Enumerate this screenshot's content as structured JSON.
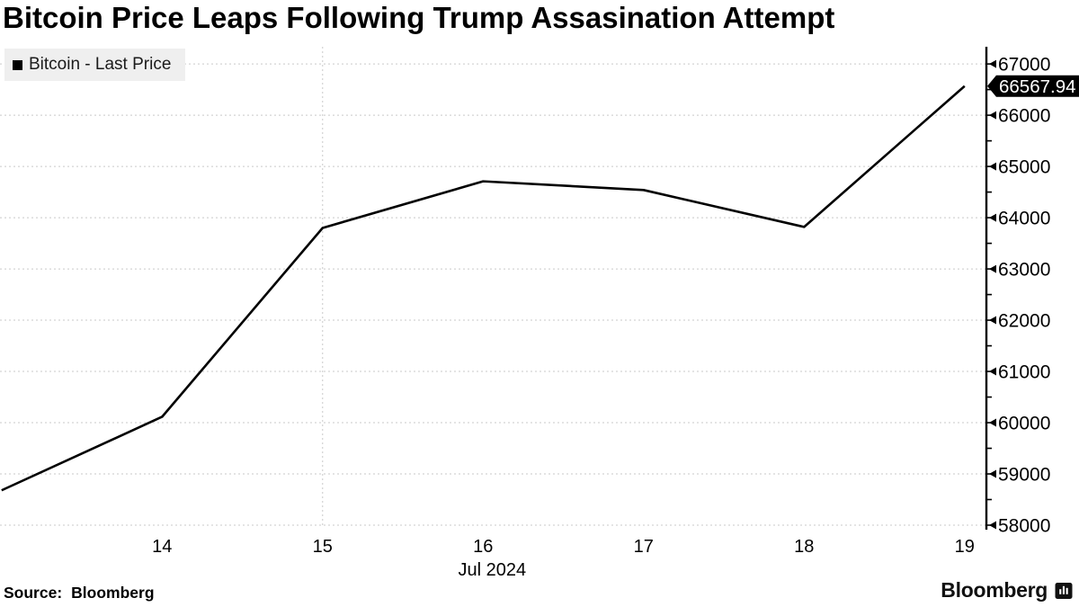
{
  "title": "Bitcoin Price Leaps Following Trump Assasination Attempt",
  "legend": {
    "swatch_color": "#000000",
    "label": "Bitcoin - Last Price"
  },
  "last_price_badge": {
    "value": "66567.94",
    "bg_color": "#000000",
    "text_color": "#ffffff"
  },
  "source": {
    "prefix": "Source:",
    "name": "Bloomberg"
  },
  "brand": {
    "logo_text": "Bloomberg",
    "icon": "bar-chart-bubble-icon"
  },
  "chart_data": {
    "type": "line",
    "title": "Bitcoin Price Leaps Following Trump Assasination Attempt",
    "xlabel": "Jul 2024",
    "ylabel": "",
    "legend_position": "top-left",
    "grid": true,
    "series": [
      {
        "name": "Bitcoin - Last Price",
        "color": "#000000",
        "points": [
          {
            "day": 13.0,
            "price": 58680
          },
          {
            "day": 14.0,
            "price": 60115
          },
          {
            "day": 15.0,
            "price": 63800
          },
          {
            "day": 16.0,
            "price": 64710
          },
          {
            "day": 17.0,
            "price": 64540
          },
          {
            "day": 18.0,
            "price": 63820
          },
          {
            "day": 19.0,
            "price": 66567.94
          }
        ]
      }
    ],
    "last_price": 66567.94,
    "x_ticks": [
      {
        "value": 14,
        "label": "14"
      },
      {
        "value": 15,
        "label": "15"
      },
      {
        "value": 16,
        "label": "16"
      },
      {
        "value": 17,
        "label": "17"
      },
      {
        "value": 18,
        "label": "18"
      },
      {
        "value": 19,
        "label": "19"
      }
    ],
    "x_axis_label": "Jul 2024",
    "week_gridline_days": [
      15
    ],
    "y_ticks": [
      58000,
      59000,
      60000,
      61000,
      62000,
      63000,
      64000,
      65000,
      66000,
      67000
    ],
    "y_minor_ticks": [
      58500,
      59500,
      60500,
      61500,
      62500,
      63500,
      64500,
      65500,
      66500
    ],
    "ylim": [
      57965,
      67283
    ],
    "xlim": [
      12.99,
      19.13
    ],
    "theme": {
      "line_color": "#000000",
      "grid_color": "#c9c9c9",
      "axis_color": "#000000",
      "label_color": "#000000",
      "legend_bg": "#efefef",
      "badge_bg": "#000000",
      "badge_text": "#ffffff"
    }
  }
}
